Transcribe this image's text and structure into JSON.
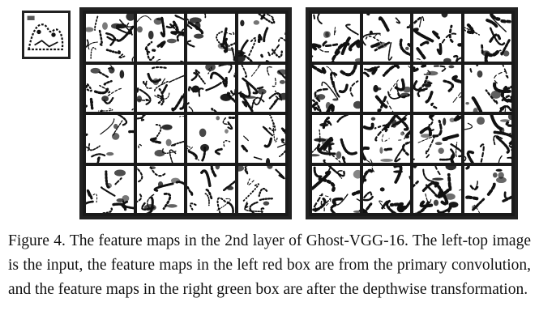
{
  "figure": {
    "caption": "Figure 4. The feature maps in the 2nd layer of Ghost-VGG-16. The left-top image is the input, the feature maps in the left red box are from the primary convolution, and the feature maps in the right green box are after the depthwise transformation.",
    "input_image_icon": "input-image",
    "left_panel": {
      "icon": "feature-map-grid",
      "rows": 4,
      "cols": 4
    },
    "right_panel": {
      "icon": "feature-map-grid",
      "rows": 4,
      "cols": 4
    }
  }
}
